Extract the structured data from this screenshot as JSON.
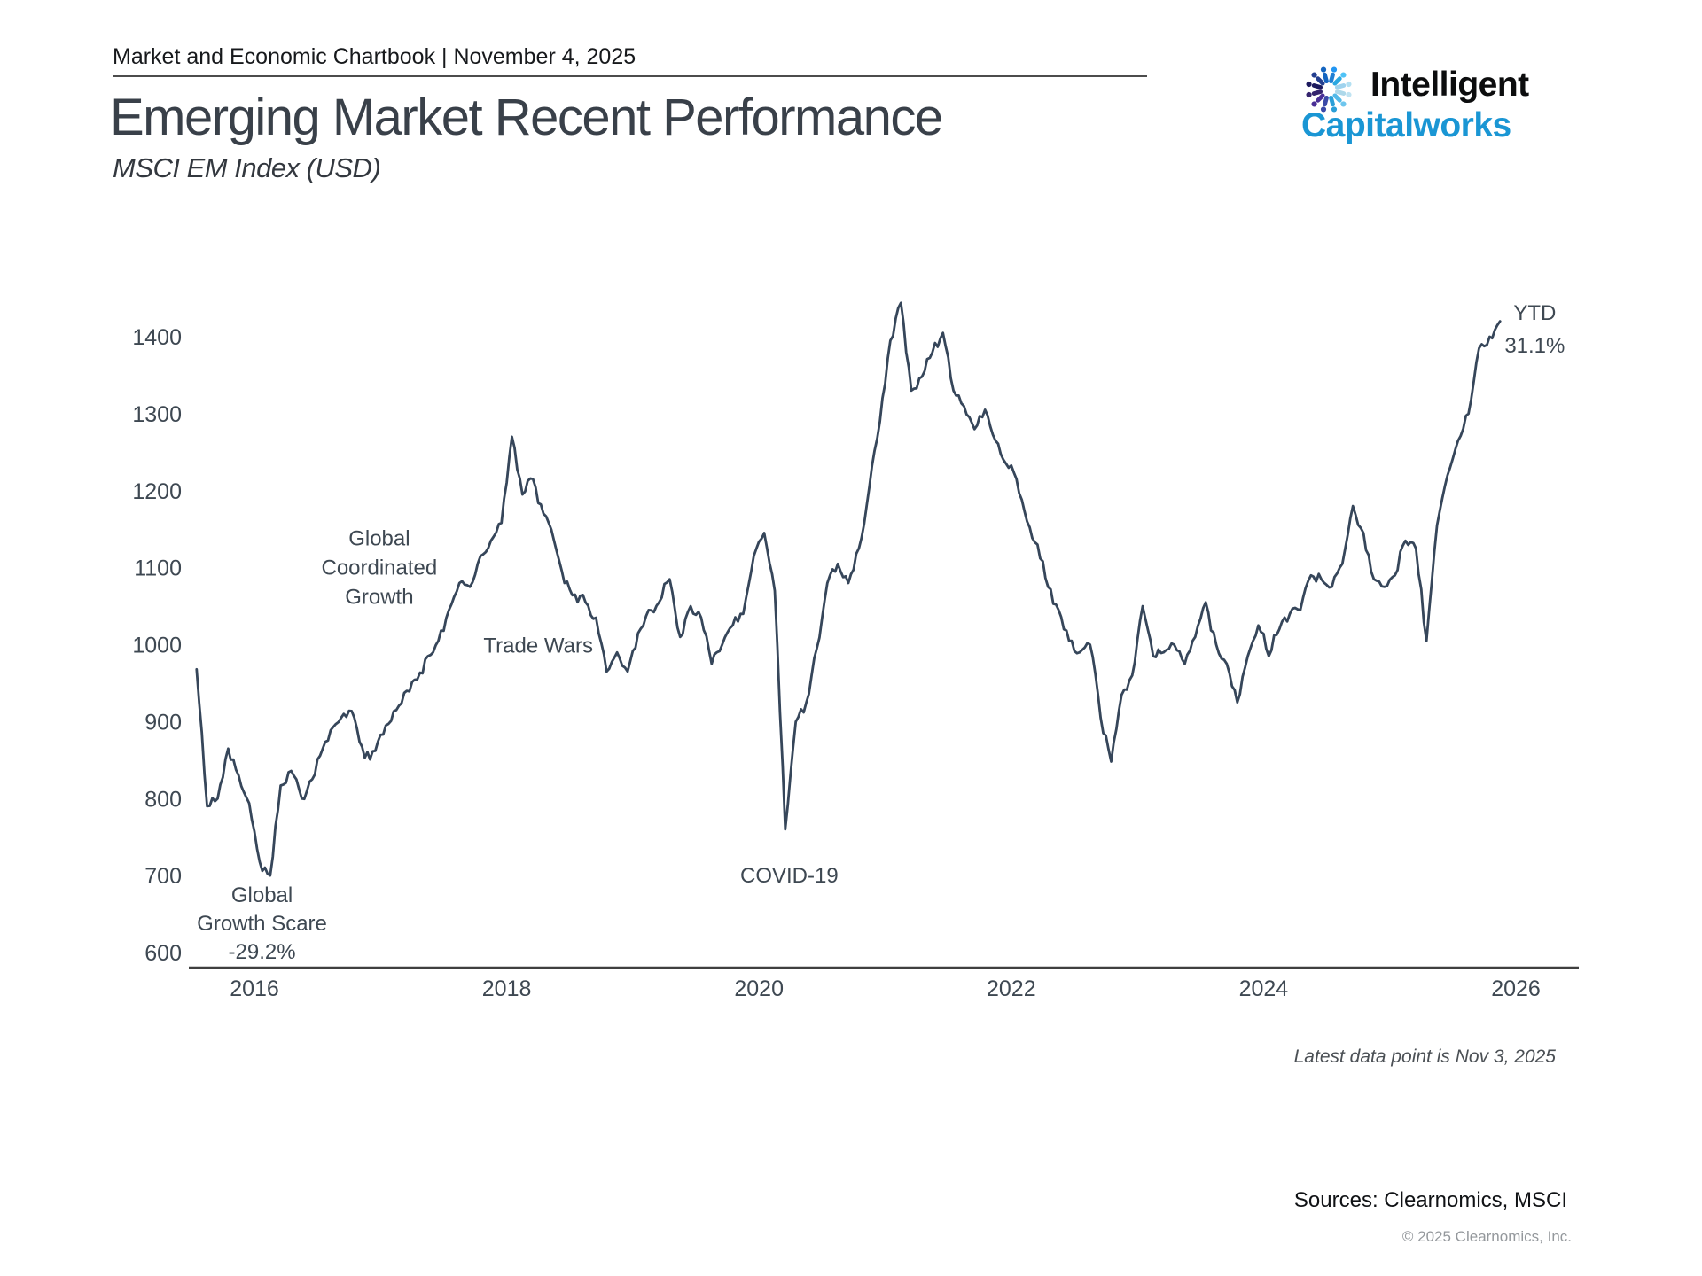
{
  "header": {
    "kicker": "Market and Economic Chartbook | November 4, 2025",
    "title": "Emerging Market Recent Performance",
    "subtitle": "MSCI EM Index (USD)"
  },
  "logo": {
    "line1": "Intelligent",
    "line2": "Capitalworks",
    "accent_color": "#1a96d4"
  },
  "chart_data": {
    "type": "line",
    "title": "Emerging Market Recent Performance",
    "subtitle": "MSCI EM Index (USD)",
    "xlabel": "",
    "ylabel": "",
    "grid": false,
    "legend": "none",
    "line_color": "#36465a",
    "axis_color": "#3f3f3f",
    "tick_label_color": "#3e4852",
    "ylim": [
      600,
      1450
    ],
    "xlim": [
      2015.5,
      2026.5
    ],
    "yticks": [
      600,
      700,
      800,
      900,
      1000,
      1100,
      1200,
      1300,
      1400
    ],
    "xticks": [
      2016,
      2018,
      2020,
      2022,
      2024,
      2026
    ],
    "series": [
      {
        "name": "MSCI EM Index (USD)",
        "points": [
          [
            "2015-07",
            968
          ],
          [
            "2015-08",
            790
          ],
          [
            "2015-09",
            800
          ],
          [
            "2015-10",
            865
          ],
          [
            "2015-11",
            830
          ],
          [
            "2015-12",
            794
          ],
          [
            "2016-01",
            718
          ],
          [
            "2016-02",
            700
          ],
          [
            "2016-03",
            817
          ],
          [
            "2016-04",
            836
          ],
          [
            "2016-05",
            800
          ],
          [
            "2016-06",
            825
          ],
          [
            "2016-07",
            865
          ],
          [
            "2016-08",
            893
          ],
          [
            "2016-09",
            910
          ],
          [
            "2016-10",
            905
          ],
          [
            "2016-11",
            853
          ],
          [
            "2016-12",
            862
          ],
          [
            "2017-01",
            895
          ],
          [
            "2017-02",
            915
          ],
          [
            "2017-03",
            940
          ],
          [
            "2017-04",
            955
          ],
          [
            "2017-05",
            985
          ],
          [
            "2017-06",
            1005
          ],
          [
            "2017-07",
            1045
          ],
          [
            "2017-08",
            1080
          ],
          [
            "2017-09",
            1075
          ],
          [
            "2017-10",
            1115
          ],
          [
            "2017-11",
            1135
          ],
          [
            "2017-12",
            1158
          ],
          [
            "2018-01",
            1270
          ],
          [
            "2018-02",
            1195
          ],
          [
            "2018-03",
            1215
          ],
          [
            "2018-04",
            1170
          ],
          [
            "2018-05",
            1135
          ],
          [
            "2018-06",
            1080
          ],
          [
            "2018-07",
            1065
          ],
          [
            "2018-08",
            1055
          ],
          [
            "2018-09",
            1035
          ],
          [
            "2018-10",
            965
          ],
          [
            "2018-11",
            990
          ],
          [
            "2018-12",
            965
          ],
          [
            "2019-01",
            1015
          ],
          [
            "2019-02",
            1045
          ],
          [
            "2019-03",
            1055
          ],
          [
            "2019-04",
            1085
          ],
          [
            "2019-05",
            1010
          ],
          [
            "2019-06",
            1050
          ],
          [
            "2019-07",
            1035
          ],
          [
            "2019-08",
            975
          ],
          [
            "2019-09",
            1000
          ],
          [
            "2019-10",
            1025
          ],
          [
            "2019-11",
            1040
          ],
          [
            "2019-12",
            1115
          ],
          [
            "2020-01",
            1145
          ],
          [
            "2020-02",
            1070
          ],
          [
            "2020-03",
            760
          ],
          [
            "2020-04",
            900
          ],
          [
            "2020-05",
            925
          ],
          [
            "2020-06",
            995
          ],
          [
            "2020-07",
            1080
          ],
          [
            "2020-08",
            1105
          ],
          [
            "2020-09",
            1080
          ],
          [
            "2020-10",
            1125
          ],
          [
            "2020-11",
            1205
          ],
          [
            "2020-12",
            1290
          ],
          [
            "2021-01",
            1395
          ],
          [
            "2021-02",
            1444
          ],
          [
            "2021-03",
            1330
          ],
          [
            "2021-04",
            1348
          ],
          [
            "2021-05",
            1380
          ],
          [
            "2021-06",
            1405
          ],
          [
            "2021-07",
            1330
          ],
          [
            "2021-08",
            1310
          ],
          [
            "2021-09",
            1280
          ],
          [
            "2021-10",
            1305
          ],
          [
            "2021-11",
            1265
          ],
          [
            "2021-12",
            1235
          ],
          [
            "2022-01",
            1215
          ],
          [
            "2022-02",
            1160
          ],
          [
            "2022-03",
            1130
          ],
          [
            "2022-04",
            1075
          ],
          [
            "2022-05",
            1045
          ],
          [
            "2022-06",
            1005
          ],
          [
            "2022-07",
            990
          ],
          [
            "2022-08",
            1000
          ],
          [
            "2022-09",
            905
          ],
          [
            "2022-10",
            848
          ],
          [
            "2022-11",
            935
          ],
          [
            "2022-12",
            960
          ],
          [
            "2023-01",
            1050
          ],
          [
            "2023-02",
            985
          ],
          [
            "2023-03",
            990
          ],
          [
            "2023-04",
            1000
          ],
          [
            "2023-05",
            975
          ],
          [
            "2023-06",
            1010
          ],
          [
            "2023-07",
            1055
          ],
          [
            "2023-08",
            1000
          ],
          [
            "2023-09",
            975
          ],
          [
            "2023-10",
            925
          ],
          [
            "2023-11",
            985
          ],
          [
            "2023-12",
            1025
          ],
          [
            "2024-01",
            985
          ],
          [
            "2024-02",
            1020
          ],
          [
            "2024-03",
            1040
          ],
          [
            "2024-04",
            1045
          ],
          [
            "2024-05",
            1090
          ],
          [
            "2024-06",
            1085
          ],
          [
            "2024-07",
            1075
          ],
          [
            "2024-08",
            1105
          ],
          [
            "2024-09",
            1180
          ],
          [
            "2024-10",
            1145
          ],
          [
            "2024-11",
            1085
          ],
          [
            "2024-12",
            1075
          ],
          [
            "2025-01",
            1090
          ],
          [
            "2025-02",
            1135
          ],
          [
            "2025-03",
            1125
          ],
          [
            "2025-04",
            1005
          ],
          [
            "2025-05",
            1155
          ],
          [
            "2025-06",
            1220
          ],
          [
            "2025-07",
            1265
          ],
          [
            "2025-08",
            1300
          ],
          [
            "2025-09",
            1385
          ],
          [
            "2025-10",
            1400
          ],
          [
            "2025-11",
            1420
          ]
        ]
      }
    ],
    "annotations": [
      {
        "name": "global-coordinated-growth",
        "lines": [
          "Global",
          "Coordinated",
          "Growth"
        ],
        "year": 2016.99,
        "value": 1138,
        "lh": 33
      },
      {
        "name": "trade-wars",
        "lines": [
          "Trade Wars"
        ],
        "year": 2018.25,
        "value": 999,
        "lh": 33
      },
      {
        "name": "covid-19",
        "lines": [
          "COVID-19"
        ],
        "year": 2020.24,
        "value": 700,
        "lh": 33
      },
      {
        "name": "global-growth-scare",
        "lines": [
          "Global",
          "Growth Scare",
          "-29.2%"
        ],
        "year": 2016.06,
        "value": 675,
        "lh": 32
      },
      {
        "name": "ytd",
        "lines": [
          "YTD",
          "31.1%"
        ],
        "year": 2026.15,
        "value": 1431,
        "lh": 37
      }
    ]
  },
  "footer": {
    "latest_note": "Latest data point is Nov 3, 2025",
    "sources": "Sources: Clearnomics, MSCI",
    "copyright": "© 2025 Clearnomics, Inc."
  }
}
